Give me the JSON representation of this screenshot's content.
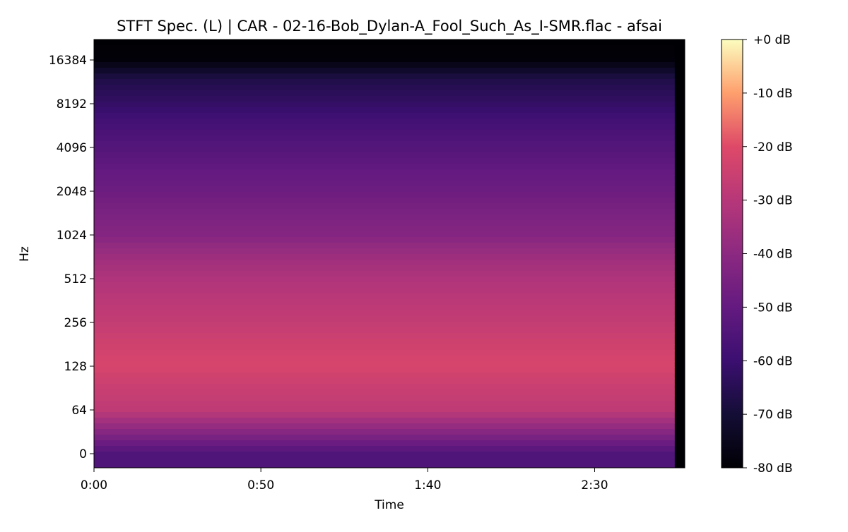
{
  "chart_data": {
    "type": "heatmap",
    "title": "STFT Spec. (L) | CAR - 02-16-Bob_Dylan-A_Fool_Such_As_I-SMR.flac - afsai",
    "xlabel": "Time",
    "ylabel": "Hz",
    "x_ticks": [
      {
        "label": "0:00",
        "seconds": 0
      },
      {
        "label": "0:50",
        "seconds": 50
      },
      {
        "label": "1:40",
        "seconds": 100
      },
      {
        "label": "2:30",
        "seconds": 150
      }
    ],
    "xlim_seconds": [
      0,
      177
    ],
    "audio_end_seconds": 174,
    "y_scale": "symlog",
    "y_ticks": [
      {
        "label": "0",
        "hz": 0
      },
      {
        "label": "64",
        "hz": 64
      },
      {
        "label": "128",
        "hz": 128
      },
      {
        "label": "256",
        "hz": 256
      },
      {
        "label": "512",
        "hz": 512
      },
      {
        "label": "1024",
        "hz": 1024
      },
      {
        "label": "2048",
        "hz": 2048
      },
      {
        "label": "4096",
        "hz": 4096
      },
      {
        "label": "8192",
        "hz": 8192
      },
      {
        "label": "16384",
        "hz": 16384
      }
    ],
    "colormap": "magma",
    "colorbar": {
      "min_db": -80,
      "max_db": 0,
      "ticks": [
        {
          "label": "+0 dB",
          "db": 0
        },
        {
          "label": "-10 dB",
          "db": -10
        },
        {
          "label": "-20 dB",
          "db": -20
        },
        {
          "label": "-30 dB",
          "db": -30
        },
        {
          "label": "-40 dB",
          "db": -40
        },
        {
          "label": "-50 dB",
          "db": -50
        },
        {
          "label": "-60 dB",
          "db": -60
        },
        {
          "label": "-70 dB",
          "db": -70
        },
        {
          "label": "-80 dB",
          "db": -80
        }
      ]
    },
    "energy_profile_db": [
      {
        "hz": 0,
        "db": -55
      },
      {
        "hz": 64,
        "db": -28
      },
      {
        "hz": 128,
        "db": -22
      },
      {
        "hz": 256,
        "db": -27
      },
      {
        "hz": 512,
        "db": -32
      },
      {
        "hz": 1024,
        "db": -42
      },
      {
        "hz": 2048,
        "db": -48
      },
      {
        "hz": 4096,
        "db": -54
      },
      {
        "hz": 8192,
        "db": -62
      },
      {
        "hz": 12000,
        "db": -67
      },
      {
        "hz": 16384,
        "db": -79
      },
      {
        "hz": 22050,
        "db": -80
      }
    ]
  }
}
